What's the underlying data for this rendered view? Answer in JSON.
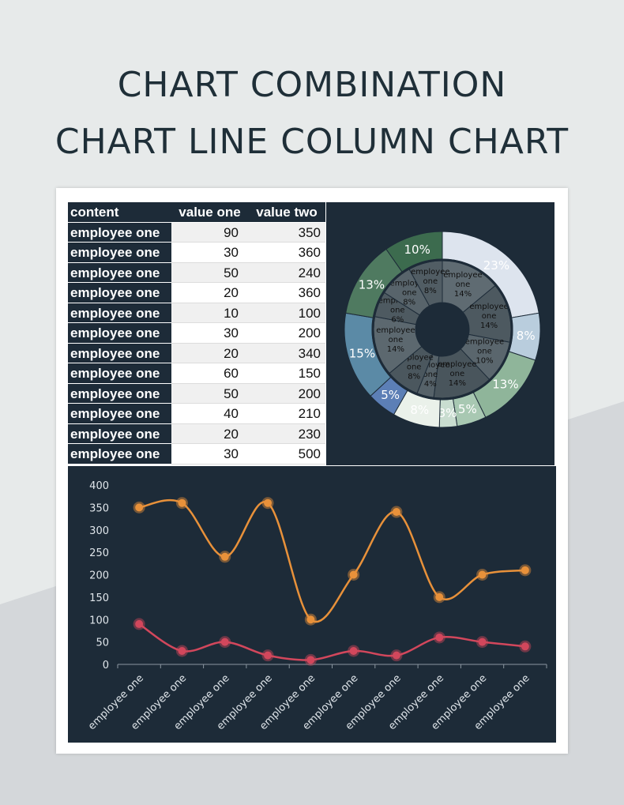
{
  "title_line1": "CHART COMBINATION",
  "title_line2": "CHART LINE COLUMN CHART",
  "table": {
    "headers": [
      "content",
      "value one",
      "value two"
    ],
    "rows": [
      {
        "label": "employee one",
        "v1": "90",
        "v2": "350"
      },
      {
        "label": "employee one",
        "v1": "30",
        "v2": "360"
      },
      {
        "label": "employee one",
        "v1": "50",
        "v2": "240"
      },
      {
        "label": "employee one",
        "v1": "20",
        "v2": "360"
      },
      {
        "label": "employee one",
        "v1": "10",
        "v2": "100"
      },
      {
        "label": "employee one",
        "v1": "30",
        "v2": "200"
      },
      {
        "label": "employee one",
        "v1": "20",
        "v2": "340"
      },
      {
        "label": "employee one",
        "v1": "60",
        "v2": "150"
      },
      {
        "label": "employee one",
        "v1": "50",
        "v2": "200"
      },
      {
        "label": "employee one",
        "v1": "40",
        "v2": "210"
      },
      {
        "label": "employee one",
        "v1": "20",
        "v2": "230"
      },
      {
        "label": "employee one",
        "v1": "30",
        "v2": "500"
      }
    ]
  },
  "chart_data": [
    {
      "type": "pie",
      "variant": "double-donut",
      "outer_ring": {
        "labels": [
          "23%",
          "8%",
          "13%",
          "5%",
          "3%",
          "8%",
          "5%",
          "15%",
          "13%",
          "10%"
        ],
        "values": [
          23,
          8,
          13,
          5,
          3,
          8,
          5,
          15,
          13,
          10
        ],
        "colors": [
          "#dde4ee",
          "#b9cddd",
          "#8fb59a",
          "#a8c8b2",
          "#c9ddd0",
          "#eaf1ea",
          "#5c7fb6",
          "#5b8aa6",
          "#4f7a60",
          "#3c6b4e"
        ]
      },
      "inner_ring": {
        "labels": [
          "employee one 14%",
          "employee one 14%",
          "employee one 10%",
          "employee one 14%",
          "employee one 4%",
          "employee one 8%",
          "employee one 14%",
          "employee one 6%",
          "employee one 8%",
          "employee one 8%"
        ],
        "values": [
          14,
          14,
          10,
          14,
          4,
          8,
          14,
          6,
          8,
          8
        ],
        "colors": [
          "#5f6b72",
          "#4d5960",
          "#5a666d",
          "#49555c",
          "#566269",
          "#4b575e",
          "#5c686f",
          "#4e5a61",
          "#58646b",
          "#515d64"
        ]
      }
    },
    {
      "type": "line",
      "smooth": true,
      "categories": [
        "employee one",
        "employee one",
        "employee one",
        "employee one",
        "employee one",
        "employee one",
        "employee one",
        "employee one",
        "employee one",
        "employee one"
      ],
      "series": [
        {
          "values": [
            350,
            360,
            240,
            360,
            100,
            200,
            340,
            150,
            200,
            210
          ],
          "color": "#e8913a"
        },
        {
          "values": [
            90,
            30,
            50,
            20,
            10,
            30,
            20,
            60,
            50,
            40
          ],
          "color": "#d2475c"
        }
      ],
      "ylim": [
        0,
        400
      ],
      "yticks": [
        "0",
        "50",
        "100",
        "150",
        "200",
        "250",
        "300",
        "350",
        "400"
      ],
      "legend": "none",
      "grid": false
    }
  ]
}
